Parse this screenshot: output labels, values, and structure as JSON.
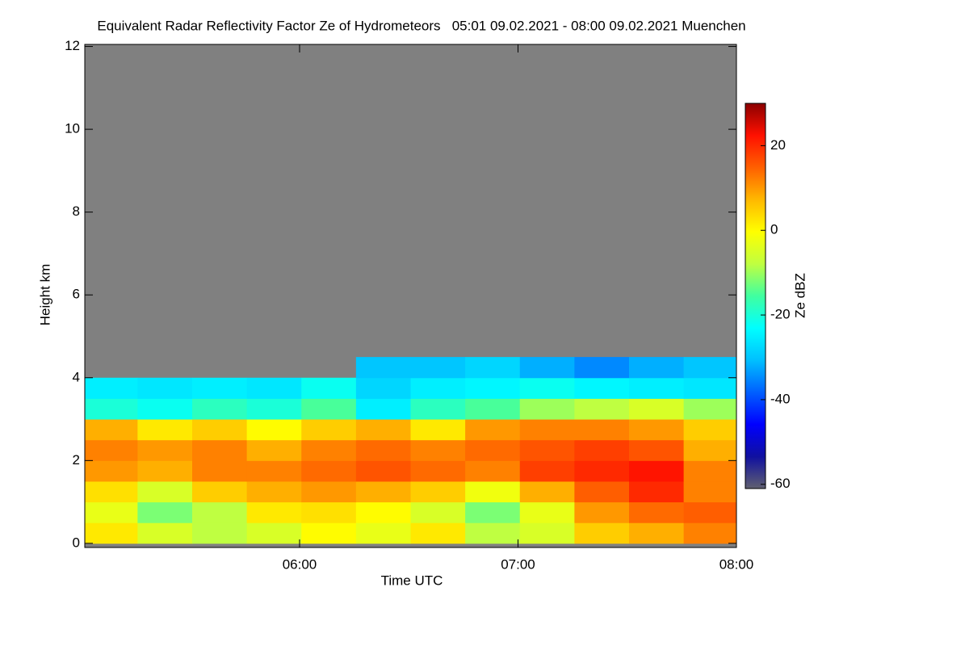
{
  "chart_data": {
    "type": "heatmap",
    "title": "Equivalent Radar Reflectivity Factor Ze of Hydrometeors   05:01 09.02.2021 - 08:00 09.02.2021 Muenchen",
    "xlabel": "Time UTC",
    "ylabel": "Height km",
    "zlabel": "Ze dBZ",
    "x": [
      308,
      323,
      338,
      353,
      368,
      383,
      398,
      413,
      428,
      443,
      458,
      473
    ],
    "y": [
      0.25,
      0.75,
      1.25,
      1.75,
      2.25,
      2.75,
      3.25,
      3.75,
      4.25
    ],
    "cell_width": 15,
    "cell_height": 0.5,
    "z": [
      [
        2,
        -5,
        -8,
        -5,
        0,
        -3,
        2,
        -8,
        -5,
        5,
        8,
        12
      ],
      [
        -3,
        -12,
        -8,
        2,
        3,
        0,
        -5,
        -12,
        -3,
        10,
        14,
        15
      ],
      [
        3,
        -5,
        5,
        8,
        10,
        8,
        5,
        -2,
        8,
        15,
        20,
        12
      ],
      [
        10,
        8,
        12,
        12,
        14,
        16,
        14,
        12,
        18,
        20,
        22,
        12
      ],
      [
        12,
        10,
        12,
        8,
        12,
        14,
        12,
        14,
        16,
        18,
        16,
        8
      ],
      [
        8,
        2,
        5,
        0,
        5,
        8,
        2,
        10,
        12,
        12,
        10,
        5
      ],
      [
        -20,
        -22,
        -18,
        -20,
        -15,
        -25,
        -18,
        -15,
        -10,
        -8,
        -5,
        -10
      ],
      [
        -25,
        -26,
        -25,
        -26,
        -22,
        -28,
        -25,
        -24,
        -22,
        -24,
        -25,
        -26
      ],
      [
        null,
        null,
        null,
        null,
        null,
        -30,
        -30,
        -28,
        -32,
        -35,
        -32,
        -30
      ]
    ],
    "xlim": [
      301,
      480
    ],
    "xticks": [
      {
        "value": 360,
        "label": "06:00"
      },
      {
        "value": 420,
        "label": "07:00"
      },
      {
        "value": 480,
        "label": "08:00"
      }
    ],
    "ylim": [
      -0.1,
      12.05
    ],
    "yticks": [
      0,
      2,
      4,
      6,
      8,
      10,
      12
    ],
    "zlim": [
      -61,
      30
    ],
    "zticks": [
      20,
      0,
      -20,
      -40,
      -60
    ],
    "colorscale": [
      "#606070",
      "#1010a0",
      "#0000ff",
      "#0060ff",
      "#00c0ff",
      "#00ffff",
      "#40ffa0",
      "#c0ff40",
      "#ffff00",
      "#ffb800",
      "#ff6000",
      "#ff1000",
      "#8b0000"
    ],
    "missing_color": "#808080"
  }
}
